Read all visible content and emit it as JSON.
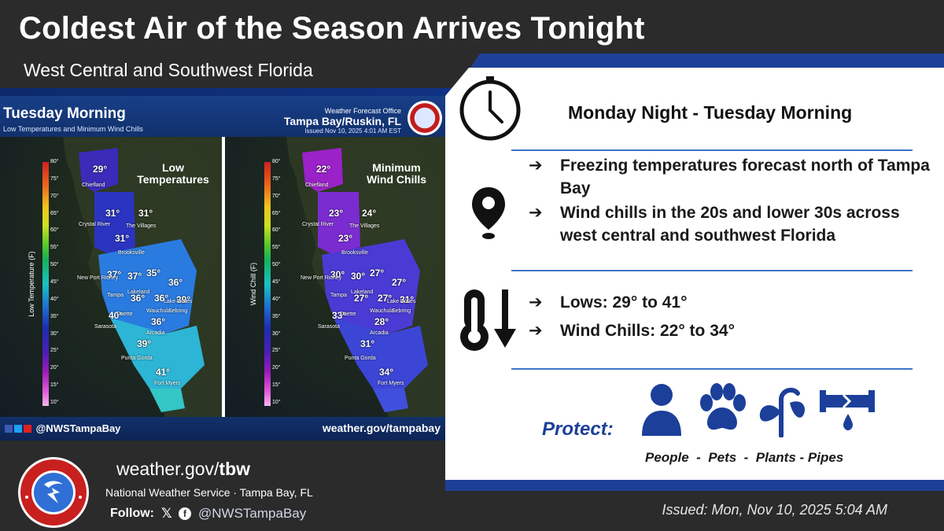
{
  "header": {
    "title": "Coldest Air of the Season Arrives Tonight",
    "subtitle": "West Central and Southwest Florida"
  },
  "map_panel": {
    "title": "Tuesday Morning",
    "subtitle": "Low Temperatures and Minimum Wind Chills",
    "office_line1": "Weather Forecast Office",
    "office_line2": "Tampa Bay/Ruskin, FL",
    "issued": "Issued Nov 10, 2025 4:01 AM EST",
    "social": "@NWSTampaBay",
    "site": "weather.gov/tampabay",
    "scale_ticks": [
      "80°",
      "75°",
      "70°",
      "65°",
      "60°",
      "55°",
      "50°",
      "45°",
      "40°",
      "35°",
      "30°",
      "25°",
      "20°",
      "15°",
      "10°"
    ],
    "left_map": {
      "title_line1": "Low",
      "title_line2": "Temperatures",
      "axis_label": "Low Temperature (F)",
      "values": [
        "29°",
        "31°",
        "31°",
        "31°",
        "37°",
        "37°",
        "35°",
        "36°",
        "36°",
        "36°",
        "39°",
        "40°",
        "36°",
        "39°",
        "41°"
      ]
    },
    "right_map": {
      "title_line1": "Minimum",
      "title_line2": "Wind Chills",
      "axis_label": "Wind Chill (F)",
      "values": [
        "22°",
        "23°",
        "24°",
        "23°",
        "30°",
        "30°",
        "27°",
        "27°",
        "27°",
        "27°",
        "31°",
        "33°",
        "28°",
        "31°",
        "34°"
      ]
    },
    "cities": [
      "Chiefland",
      "Crystal River",
      "The Villages",
      "Brooksville",
      "New Port Richey",
      "Tampa",
      "Lakeland",
      "Lake Wales",
      "Duette",
      "Wauchula",
      "Sebring",
      "Sarasota",
      "Arcadia",
      "Punta Gorda",
      "Fort Myers"
    ]
  },
  "info": {
    "heading": "Monday Night - Tuesday Morning",
    "arrow": "➔",
    "bullets_1": [
      "Freezing temperatures forecast north of Tampa Bay",
      "Wind chills in the 20s and lower 30s across west central and southwest Florida"
    ],
    "bullets_2": [
      "Lows: 29° to 41°",
      "Wind Chills: 22° to 34°"
    ],
    "protect_label": "Protect:",
    "protect_items": "People  -  Pets  -  Plants - Pipes",
    "icons": [
      "clock-icon",
      "location-pin-icon",
      "thermometer-down-icon",
      "person-icon",
      "paw-icon",
      "plant-icon",
      "pipe-icon"
    ],
    "accent_color": "#1c3f9a"
  },
  "footer": {
    "site_prefix": "weather.gov/",
    "site_bold": "tbw",
    "org": "National Weather Service · Tampa Bay, FL",
    "follow_label": "Follow:",
    "x_glyph": "𝕏",
    "fb_glyph": "f",
    "handle": "@NWSTampaBay",
    "issued": "Issued: Mon, Nov 10, 2025 5:04 AM",
    "logo_text": "NATIONAL WEATHER SERVICE"
  }
}
